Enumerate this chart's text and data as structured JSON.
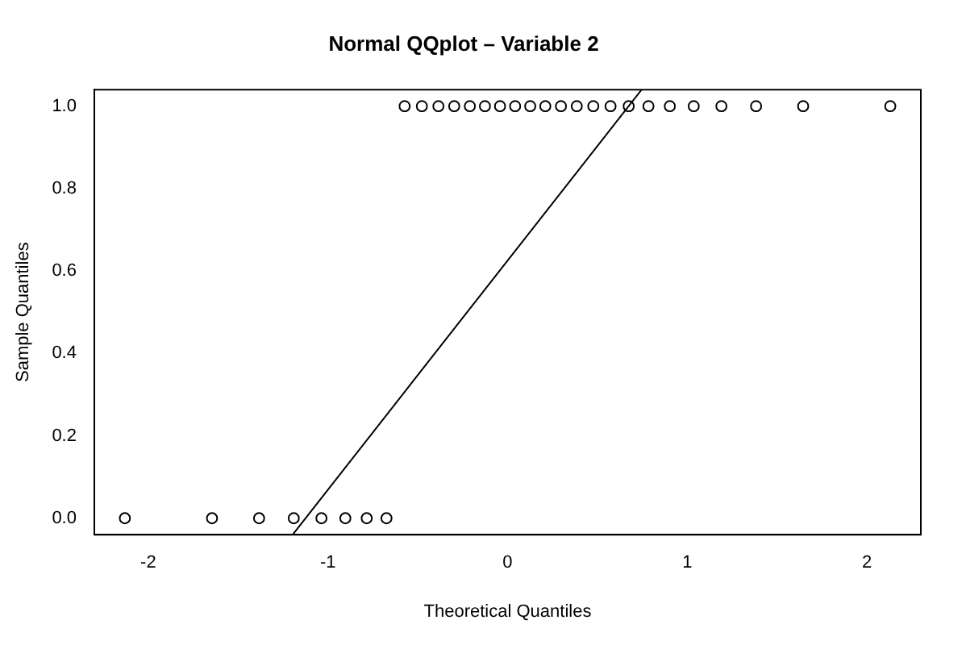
{
  "chart_data": {
    "type": "scatter",
    "title": "Normal QQplot – Variable 2",
    "xlabel": "Theoretical Quantiles",
    "ylabel": "Sample Quantiles",
    "xlim": [
      -2.3,
      2.3
    ],
    "ylim": [
      -0.04,
      1.04
    ],
    "xticks": [
      -2,
      -1,
      0,
      1,
      2
    ],
    "yticks": [
      {
        "value": 0,
        "label": "0.0"
      },
      0.2,
      0.4,
      0.6,
      0.8,
      {
        "value": 1,
        "label": "1.0"
      }
    ],
    "grid": false,
    "legend": false,
    "marker": "circle",
    "series": [
      {
        "color": "#000000",
        "x": [
          -2.13,
          -1.645,
          -1.383,
          -1.19,
          -1.036,
          -0.903,
          -0.784,
          -0.674,
          -0.573,
          -0.477,
          -0.385,
          -0.297,
          -0.21,
          -0.126,
          -0.042,
          0.042,
          0.126,
          0.21,
          0.297,
          0.385,
          0.477,
          0.573,
          0.674,
          0.784,
          0.903,
          1.036,
          1.19,
          1.383,
          1.645,
          2.13
        ],
        "values": [
          0,
          0,
          0,
          0,
          0,
          0,
          0,
          0,
          1,
          1,
          1,
          1,
          1,
          1,
          1,
          1,
          1,
          1,
          1,
          1,
          1,
          1,
          1,
          1,
          1,
          1,
          1,
          1,
          1,
          1
        ]
      },
      {
        "type": "line",
        "color": "#000000",
        "marker": "none",
        "line_style": "solid",
        "x": [
          -1.196,
          0.746
        ],
        "values": [
          -0.04,
          1.04
        ]
      }
    ]
  }
}
